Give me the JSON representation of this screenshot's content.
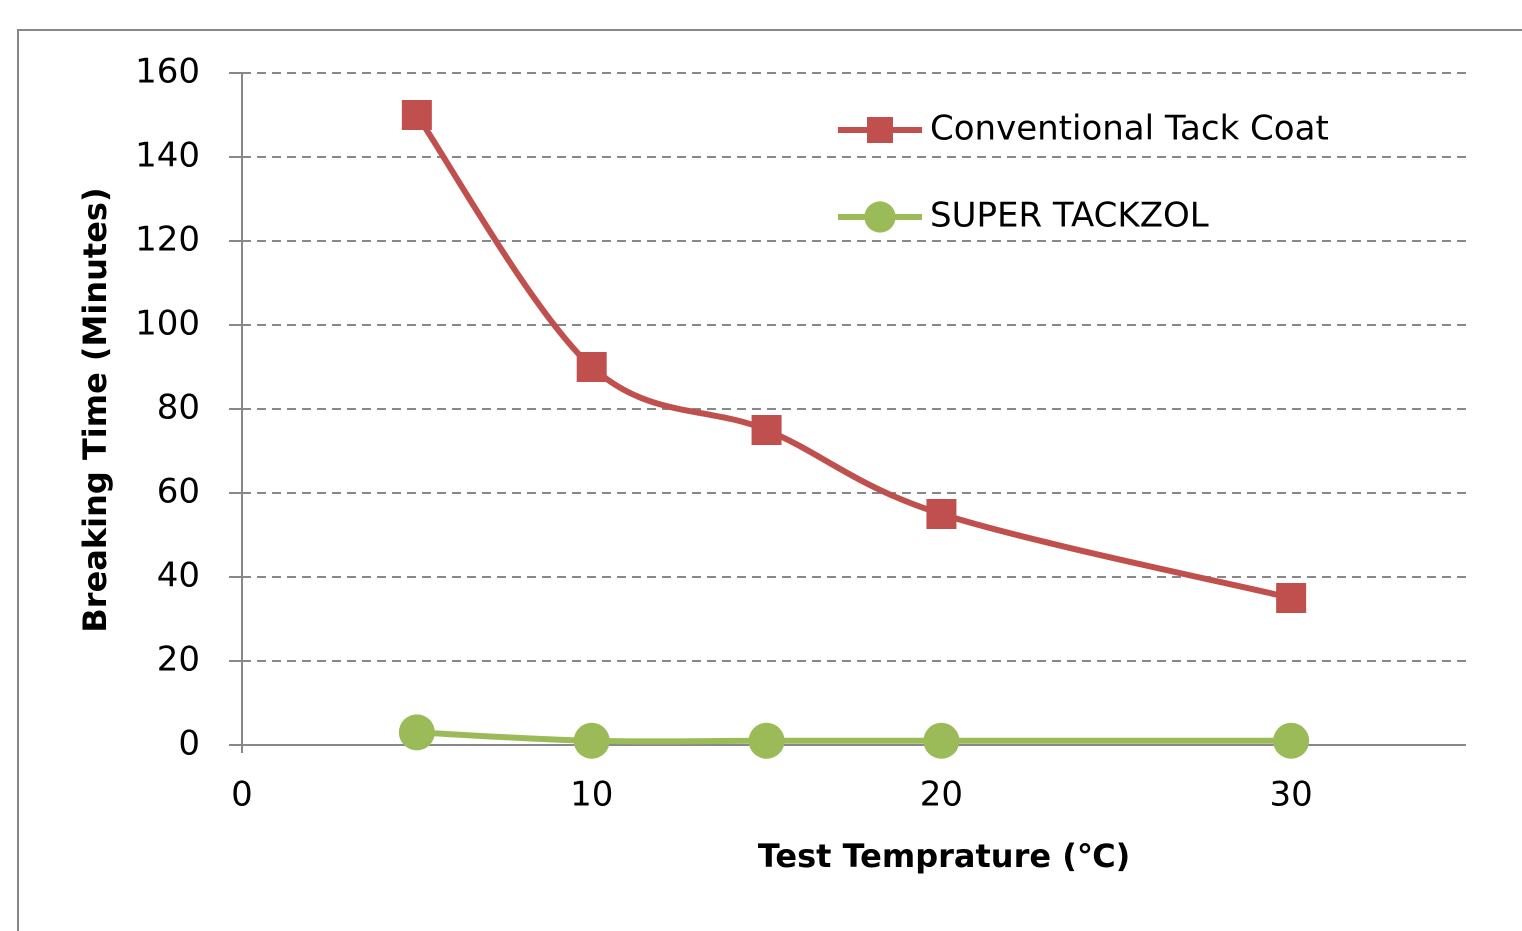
{
  "chart_data": {
    "type": "line",
    "x_label": "Test Temprature (℃)",
    "y_label": "Breaking Time (Minutes)",
    "x": [
      5,
      10,
      15,
      20,
      30
    ],
    "series": [
      {
        "name": "Conventional Tack Coat",
        "color": "#c0504d",
        "marker": "square",
        "values": [
          150,
          90,
          75,
          55,
          35
        ]
      },
      {
        "name": "SUPER TACKZOL",
        "color": "#9bbb59",
        "marker": "circle",
        "values": [
          3,
          1,
          1,
          1,
          1
        ]
      }
    ],
    "xlim": [
      0,
      35
    ],
    "xticks": [
      0,
      10,
      20,
      30
    ],
    "ylim": [
      0,
      160
    ],
    "yticks": [
      0,
      20,
      40,
      60,
      80,
      100,
      120,
      140,
      160
    ],
    "grid": true,
    "smooth": true,
    "legend": "upper right"
  }
}
